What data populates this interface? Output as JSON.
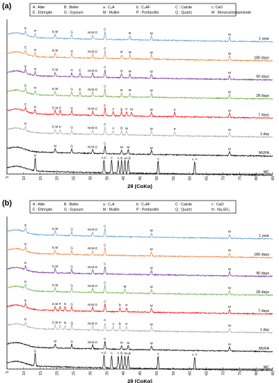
{
  "chart_data": [
    {
      "type": "line",
      "panel_label": "(a)",
      "xlabel": "2θ (CoKα)",
      "xlim": [
        5,
        85
      ],
      "x_ticks": [
        5,
        10,
        15,
        20,
        25,
        30,
        35,
        40,
        45,
        50,
        55,
        60,
        65,
        70,
        75,
        80,
        85
      ],
      "legend": [
        [
          "A : Alite",
          "B : Belite",
          "a : C₃A",
          "b : C₄AF",
          "C : Calcite",
          "c: CaO"
        ],
        [
          "E : Ettringite",
          "G : Gypsum",
          "M : Mullite",
          "P : Portlandite",
          "Q : Quartz",
          "M : Monocarboaluminate"
        ]
      ],
      "series": [
        {
          "name": "1 year",
          "color": "#5b9bd5",
          "peaks": [
            {
              "x": 10.6,
              "label": "E"
            },
            {
              "x": 13.5,
              "label": "m"
            },
            {
              "x": 19.5,
              "label": "E,M"
            },
            {
              "x": 24.5,
              "label": "G"
            },
            {
              "x": 30.8,
              "label": "M,M,G"
            },
            {
              "x": 34.5,
              "label": "C"
            },
            {
              "x": 42.0,
              "label": "B"
            },
            {
              "x": 48.5,
              "label": "M"
            },
            {
              "x": 72.0,
              "label": "M"
            }
          ]
        },
        {
          "name": "180 days",
          "color": "#ed7d31",
          "peaks": [
            {
              "x": 10.6,
              "label": "E"
            },
            {
              "x": 13.5,
              "label": "m"
            },
            {
              "x": 19.5,
              "label": "E,M"
            },
            {
              "x": 24.5,
              "label": "G"
            },
            {
              "x": 30.8,
              "label": "M,M,G"
            },
            {
              "x": 34.5,
              "label": "C"
            },
            {
              "x": 39.5,
              "label": "B"
            },
            {
              "x": 42.0,
              "label": "M"
            },
            {
              "x": 48.5,
              "label": "M"
            },
            {
              "x": 72.0,
              "label": "M"
            }
          ]
        },
        {
          "name": "90 days",
          "color": "#7030a0",
          "peaks": [
            {
              "x": 10.6,
              "label": "E"
            },
            {
              "x": 13.5,
              "label": "m"
            },
            {
              "x": 19.5,
              "label": "E,M"
            },
            {
              "x": 24.5,
              "label": "G"
            },
            {
              "x": 27.0,
              "label": "E"
            },
            {
              "x": 30.8,
              "label": "M,M,G"
            },
            {
              "x": 34.5,
              "label": "C"
            },
            {
              "x": 39.5,
              "label": "B"
            },
            {
              "x": 42.0,
              "label": "M"
            },
            {
              "x": 48.5,
              "label": "M"
            },
            {
              "x": 72.0,
              "label": "M"
            }
          ]
        },
        {
          "name": "28 days",
          "color": "#70ad47",
          "peaks": [
            {
              "x": 10.6,
              "label": "E"
            },
            {
              "x": 13.5,
              "label": "m"
            },
            {
              "x": 19.5,
              "label": "E,M"
            },
            {
              "x": 24.5,
              "label": "G"
            },
            {
              "x": 27.0,
              "label": "E"
            },
            {
              "x": 30.8,
              "label": "M,M,G"
            },
            {
              "x": 34.5,
              "label": "C"
            },
            {
              "x": 39.5,
              "label": "B"
            },
            {
              "x": 42.0,
              "label": "M"
            },
            {
              "x": 48.5,
              "label": "M"
            },
            {
              "x": 72.0,
              "label": "M"
            }
          ]
        },
        {
          "name": "7 days",
          "color": "#ff0000",
          "peaks": [
            {
              "x": 10.6,
              "label": "E"
            },
            {
              "x": 13.5,
              "label": "m"
            },
            {
              "x": 19.5,
              "label": "E,M"
            },
            {
              "x": 21.0,
              "label": "P"
            },
            {
              "x": 24.5,
              "label": "G"
            },
            {
              "x": 30.8,
              "label": "M,M,G"
            },
            {
              "x": 34.5,
              "label": "C"
            },
            {
              "x": 37.0,
              "label": "A"
            },
            {
              "x": 39.5,
              "label": "B"
            },
            {
              "x": 41.0,
              "label": "P"
            },
            {
              "x": 42.5,
              "label": "M"
            },
            {
              "x": 48.5,
              "label": "M"
            },
            {
              "x": 55.5,
              "label": "P"
            },
            {
              "x": 72.0,
              "label": "M"
            }
          ]
        },
        {
          "name": "1 day",
          "color": "#a6a6a6",
          "peaks": [
            {
              "x": 10.6,
              "label": "E"
            },
            {
              "x": 19.5,
              "label": "E,M"
            },
            {
              "x": 21.0,
              "label": "P"
            },
            {
              "x": 24.5,
              "label": "G"
            },
            {
              "x": 30.8,
              "label": "M,M,G"
            },
            {
              "x": 34.5,
              "label": "C"
            },
            {
              "x": 37.0,
              "label": "A"
            },
            {
              "x": 39.5,
              "label": "B"
            },
            {
              "x": 41.0,
              "label": "M"
            },
            {
              "x": 48.5,
              "label": "M"
            },
            {
              "x": 55.5,
              "label": "P"
            },
            {
              "x": 72.0,
              "label": "M"
            }
          ]
        },
        {
          "name": "MUFA",
          "color": "#000000",
          "peaks": [
            {
              "x": 19.5,
              "label": "M"
            },
            {
              "x": 24.5,
              "label": "G"
            },
            {
              "x": 30.8,
              "label": "M,M,G"
            },
            {
              "x": 34.5,
              "label": "C"
            },
            {
              "x": 39.5,
              "label": "M"
            },
            {
              "x": 41.5,
              "label": "M"
            },
            {
              "x": 48.5,
              "label": "M"
            },
            {
              "x": 72.0,
              "label": "M"
            }
          ]
        },
        {
          "name": "MC",
          "color": "#000000",
          "peaks": [
            {
              "x": 13.5,
              "label": "G"
            },
            {
              "x": 34.2,
              "label": "A,C"
            },
            {
              "x": 36.5,
              "label": "A"
            },
            {
              "x": 38.5,
              "label": "A"
            },
            {
              "x": 39.5,
              "label": "B"
            },
            {
              "x": 40.5,
              "label": "a"
            },
            {
              "x": 41.5,
              "label": "A,B"
            },
            {
              "x": 50.5,
              "label": "A"
            },
            {
              "x": 61.5,
              "label": "c, A"
            }
          ]
        }
      ]
    },
    {
      "type": "line",
      "panel_label": "(b)",
      "xlabel": "2θ (CoKα)",
      "xlim": [
        5,
        85
      ],
      "x_ticks": [
        5,
        10,
        15,
        20,
        25,
        30,
        35,
        40,
        45,
        50,
        55,
        60,
        65,
        70,
        75,
        80,
        85
      ],
      "legend": [
        [
          "A : Alite",
          "B : Belite",
          "a : C₃A",
          "b : C₄AF",
          "C : Calcite",
          "c : CaO"
        ],
        [
          "E : Ettringite",
          "G : Gypsum",
          "M : Mullite",
          "P : Portlandite",
          "Q : Quartz",
          "N : Na₂SO₄"
        ]
      ],
      "series": [
        {
          "name": "1 year",
          "color": "#5b9bd5",
          "peaks": [
            {
              "x": 10.6,
              "label": "E"
            },
            {
              "x": 19.5,
              "label": "E,M"
            },
            {
              "x": 24.5,
              "label": "G"
            },
            {
              "x": 30.8,
              "label": "M,M,G"
            },
            {
              "x": 34.5,
              "label": "C"
            },
            {
              "x": 48.5,
              "label": "M"
            },
            {
              "x": 72.0,
              "label": "M"
            }
          ]
        },
        {
          "name": "180 days",
          "color": "#ed7d31",
          "peaks": [
            {
              "x": 10.6,
              "label": "E"
            },
            {
              "x": 19.5,
              "label": "E,M"
            },
            {
              "x": 24.5,
              "label": "G"
            },
            {
              "x": 30.8,
              "label": "M,M,G"
            },
            {
              "x": 34.5,
              "label": "C"
            },
            {
              "x": 48.5,
              "label": "M"
            },
            {
              "x": 72.0,
              "label": "M"
            }
          ]
        },
        {
          "name": "90 days",
          "color": "#7030a0",
          "peaks": [
            {
              "x": 10.6,
              "label": "E"
            },
            {
              "x": 19.5,
              "label": "E,M"
            },
            {
              "x": 24.5,
              "label": "G"
            },
            {
              "x": 30.8,
              "label": "M,M,G"
            },
            {
              "x": 34.5,
              "label": "C"
            },
            {
              "x": 48.5,
              "label": "M"
            },
            {
              "x": 72.0,
              "label": "M"
            }
          ]
        },
        {
          "name": "28 days",
          "color": "#70ad47",
          "peaks": [
            {
              "x": 10.6,
              "label": "E"
            },
            {
              "x": 19.5,
              "label": "E,M"
            },
            {
              "x": 24.5,
              "label": "G"
            },
            {
              "x": 30.8,
              "label": "M,M,G"
            },
            {
              "x": 34.5,
              "label": "C"
            },
            {
              "x": 40.5,
              "label": "M"
            },
            {
              "x": 48.5,
              "label": "M"
            },
            {
              "x": 72.0,
              "label": "M"
            }
          ]
        },
        {
          "name": "7 days",
          "color": "#ff0000",
          "peaks": [
            {
              "x": 10.6,
              "label": "E"
            },
            {
              "x": 19.5,
              "label": "E,M"
            },
            {
              "x": 21.0,
              "label": "P"
            },
            {
              "x": 22.5,
              "label": "N"
            },
            {
              "x": 24.5,
              "label": "G"
            },
            {
              "x": 30.8,
              "label": "M,M,G"
            },
            {
              "x": 34.5,
              "label": "C"
            },
            {
              "x": 39.0,
              "label": "B"
            },
            {
              "x": 41.0,
              "label": "P"
            },
            {
              "x": 48.5,
              "label": "M"
            },
            {
              "x": 72.0,
              "label": "M"
            }
          ]
        },
        {
          "name": "1 day",
          "color": "#a6a6a6",
          "peaks": [
            {
              "x": 10.6,
              "label": "E"
            },
            {
              "x": 19.5,
              "label": "E,M"
            },
            {
              "x": 21.0,
              "label": "P"
            },
            {
              "x": 22.5,
              "label": "N"
            },
            {
              "x": 24.5,
              "label": "Q"
            },
            {
              "x": 30.8,
              "label": "M,M,G"
            },
            {
              "x": 34.5,
              "label": "C"
            },
            {
              "x": 37.0,
              "label": "A"
            },
            {
              "x": 39.0,
              "label": "B"
            },
            {
              "x": 41.0,
              "label": "P"
            },
            {
              "x": 48.5,
              "label": "M"
            },
            {
              "x": 72.0,
              "label": "M"
            }
          ]
        },
        {
          "name": "MUFA",
          "color": "#000000",
          "peaks": [
            {
              "x": 19.5,
              "label": "M"
            },
            {
              "x": 24.5,
              "label": "G"
            },
            {
              "x": 30.8,
              "label": "M,M,G"
            },
            {
              "x": 34.5,
              "label": "C"
            },
            {
              "x": 39.5,
              "label": "M"
            },
            {
              "x": 41.5,
              "label": "M"
            },
            {
              "x": 48.5,
              "label": "M"
            },
            {
              "x": 72.0,
              "label": "M"
            }
          ]
        },
        {
          "name": "MC",
          "color": "#000000",
          "peaks": [
            {
              "x": 13.5,
              "label": "G"
            },
            {
              "x": 34.2,
              "label": "A,C"
            },
            {
              "x": 36.5,
              "label": "A"
            },
            {
              "x": 38.5,
              "label": "A"
            },
            {
              "x": 39.5,
              "label": "B"
            },
            {
              "x": 40.5,
              "label": "a"
            },
            {
              "x": 41.5,
              "label": "A,B"
            },
            {
              "x": 50.5,
              "label": "A"
            },
            {
              "x": 61.5,
              "label": "c, A"
            }
          ]
        }
      ]
    }
  ]
}
